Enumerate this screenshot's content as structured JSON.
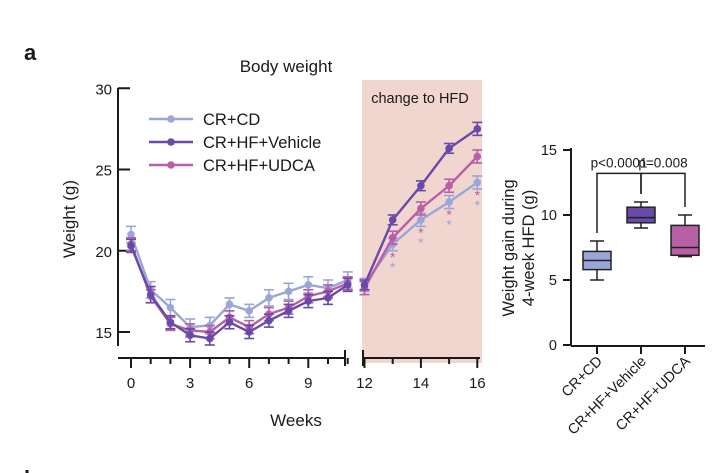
{
  "panel_label": "a",
  "next_panel_label": "b",
  "colors": {
    "cd": "#9aa5d8",
    "vehicle": "#6a4aa8",
    "udca": "#b85fa6",
    "hfd_shade": "#f1d6d0",
    "axis": "#1a1a1a"
  },
  "chart_data": [
    {
      "type": "line",
      "title": "Body weight",
      "xlabel": "Weeks",
      "ylabel": "Weight (g)",
      "annotation": "change to HFD",
      "hfd_region": [
        12,
        16
      ],
      "xlim": [
        0,
        16
      ],
      "ylim": [
        13,
        30
      ],
      "xticks": [
        0,
        3,
        6,
        9,
        12,
        14,
        16
      ],
      "yticks": [
        15,
        20,
        25,
        30
      ],
      "axis_break": [
        11,
        12
      ],
      "legend_position": "top-left",
      "x": [
        0,
        1,
        2,
        3,
        4,
        5,
        6,
        7,
        8,
        9,
        10,
        11,
        12,
        13,
        14,
        15,
        16
      ],
      "series": [
        {
          "name": "CR+CD",
          "color_key": "cd",
          "values": [
            21.0,
            17.6,
            16.5,
            15.3,
            15.4,
            16.7,
            16.3,
            17.1,
            17.5,
            17.9,
            17.7,
            18.2,
            17.9,
            20.4,
            21.9,
            23.0,
            24.2
          ],
          "errors": [
            0.5,
            0.5,
            0.5,
            0.5,
            0.5,
            0.4,
            0.4,
            0.5,
            0.5,
            0.5,
            0.5,
            0.5,
            0.4,
            0.4,
            0.4,
            0.4,
            0.4
          ]
        },
        {
          "name": "CR+HF+Vehicle",
          "color_key": "vehicle",
          "values": [
            20.3,
            17.3,
            15.6,
            14.8,
            14.6,
            15.6,
            15.0,
            15.7,
            16.3,
            16.9,
            17.1,
            17.9,
            17.9,
            21.9,
            24.0,
            26.3,
            27.5
          ],
          "errors": [
            0.4,
            0.5,
            0.4,
            0.4,
            0.4,
            0.4,
            0.4,
            0.4,
            0.4,
            0.4,
            0.4,
            0.4,
            0.3,
            0.3,
            0.3,
            0.3,
            0.4
          ]
        },
        {
          "name": "CR+HF+UDCA",
          "color_key": "udca",
          "values": [
            20.4,
            17.2,
            15.5,
            15.1,
            15.0,
            15.9,
            15.3,
            16.1,
            16.5,
            17.2,
            17.5,
            18.0,
            17.7,
            20.8,
            22.6,
            24.0,
            25.8
          ],
          "errors": [
            0.4,
            0.4,
            0.4,
            0.4,
            0.4,
            0.4,
            0.4,
            0.4,
            0.4,
            0.4,
            0.4,
            0.4,
            0.4,
            0.4,
            0.4,
            0.4,
            0.4
          ]
        }
      ],
      "significance": {
        "weeks": [
          13,
          14,
          15,
          16
        ],
        "marker": "*",
        "series": [
          "CR+HF+UDCA",
          "CR+CD"
        ]
      }
    },
    {
      "type": "box",
      "title": "",
      "ylabel": "Weight gain during 4-week HFD (g)",
      "ylabel_lines": [
        "Weight gain during",
        "4-week HFD (g)"
      ],
      "ylim": [
        0,
        15
      ],
      "yticks": [
        0,
        5,
        10,
        15
      ],
      "categories": [
        "CR+CD",
        "CR+HF+Vehicle",
        "CR+HF+UDCA"
      ],
      "boxes": [
        {
          "color_key": "cd",
          "min": 5.0,
          "q1": 5.8,
          "median": 6.5,
          "q3": 7.2,
          "max": 8.0
        },
        {
          "color_key": "vehicle",
          "min": 9.0,
          "q1": 9.4,
          "median": 9.8,
          "q3": 10.6,
          "max": 11.0
        },
        {
          "color_key": "udca",
          "min": 6.8,
          "q1": 6.9,
          "median": 7.5,
          "q3": 9.2,
          "max": 10.0
        }
      ],
      "comparisons": [
        {
          "from": 0,
          "to": 1,
          "label": "p<0.0001"
        },
        {
          "from": 1,
          "to": 2,
          "label": "p=0.008"
        }
      ]
    }
  ]
}
